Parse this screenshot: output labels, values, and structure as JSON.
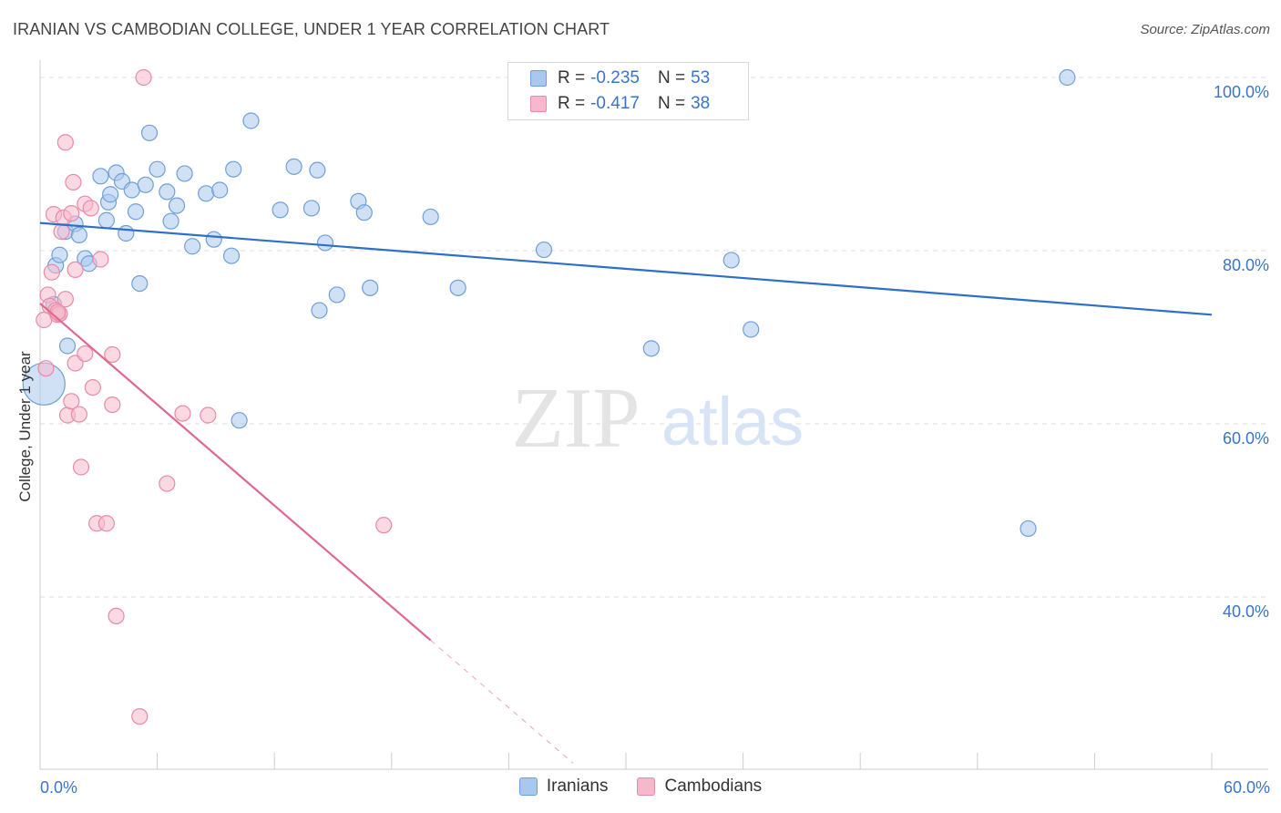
{
  "title": "IRANIAN VS CAMBODIAN COLLEGE, UNDER 1 YEAR CORRELATION CHART",
  "source": "Source: ZipAtlas.com",
  "watermark": {
    "zip": "ZIP",
    "atlas": "atlas"
  },
  "legend": {
    "iranians": {
      "r_label": "R =",
      "r_value": "-0.235",
      "n_label": "N =",
      "n_value": "53"
    },
    "cambodians": {
      "r_label": "R =",
      "r_value": "-0.417",
      "n_label": "N =",
      "n_value": "38"
    }
  },
  "colors": {
    "blue_fill": "#a9c8ef",
    "blue_stroke": "#6f9fd8",
    "blue_line": "#2e6fc9",
    "pink_fill": "#f6b9cc",
    "pink_stroke": "#e88aa8",
    "pink_line": "#e0698f",
    "axis_text": "#3a74c9",
    "grid": "#dddddd"
  },
  "chart_data": {
    "type": "scatter",
    "title": "IRANIAN VS CAMBODIAN COLLEGE, UNDER 1 YEAR CORRELATION CHART",
    "xlabel": "",
    "ylabel": "College, Under 1 year",
    "xlim": [
      0,
      60
    ],
    "ylim": [
      20,
      102
    ],
    "x_tick_labels": [
      {
        "value": 0,
        "label": "0.0%"
      },
      {
        "value": 60,
        "label": "60.0%"
      }
    ],
    "y_tick_labels": [
      {
        "value": 100,
        "label": "100.0%"
      },
      {
        "value": 80,
        "label": "80.0%"
      },
      {
        "value": 60,
        "label": "60.0%"
      },
      {
        "value": 40,
        "label": "40.0%"
      }
    ],
    "series": [
      {
        "name": "Iranians",
        "color": "#a9c8ef",
        "trend": {
          "x0": 0,
          "y0": 83.2,
          "x1": 60,
          "y1": 72.6,
          "dashed_to": 60
        },
        "points": [
          [
            0.7,
            73.8
          ],
          [
            0.8,
            78.3
          ],
          [
            1.0,
            79.5
          ],
          [
            1.3,
            82.2
          ],
          [
            1.4,
            69.0
          ],
          [
            1.8,
            83.1
          ],
          [
            2.0,
            81.8
          ],
          [
            2.3,
            79.1
          ],
          [
            2.5,
            78.5
          ],
          [
            3.1,
            88.6
          ],
          [
            3.4,
            83.5
          ],
          [
            3.5,
            85.6
          ],
          [
            3.6,
            86.5
          ],
          [
            3.9,
            89.0
          ],
          [
            4.2,
            88.0
          ],
          [
            4.4,
            82.0
          ],
          [
            4.7,
            87.0
          ],
          [
            4.9,
            84.5
          ],
          [
            5.1,
            76.2
          ],
          [
            5.4,
            87.6
          ],
          [
            5.6,
            93.6
          ],
          [
            6.0,
            89.4
          ],
          [
            6.5,
            86.8
          ],
          [
            6.7,
            83.4
          ],
          [
            7.0,
            85.2
          ],
          [
            7.4,
            88.9
          ],
          [
            7.8,
            80.5
          ],
          [
            8.5,
            86.6
          ],
          [
            8.9,
            81.3
          ],
          [
            9.2,
            87.0
          ],
          [
            9.8,
            79.4
          ],
          [
            9.9,
            89.4
          ],
          [
            10.2,
            60.4
          ],
          [
            10.8,
            95.0
          ],
          [
            12.3,
            84.7
          ],
          [
            13.0,
            89.7
          ],
          [
            13.9,
            84.9
          ],
          [
            14.2,
            89.3
          ],
          [
            14.3,
            73.1
          ],
          [
            14.6,
            80.9
          ],
          [
            15.2,
            74.9
          ],
          [
            16.3,
            85.7
          ],
          [
            16.6,
            84.4
          ],
          [
            16.9,
            75.7
          ],
          [
            20.0,
            83.9
          ],
          [
            21.4,
            75.7
          ],
          [
            25.8,
            80.1
          ],
          [
            31.3,
            68.7
          ],
          [
            35.4,
            78.9
          ],
          [
            36.4,
            70.9
          ],
          [
            50.6,
            47.9
          ],
          [
            52.6,
            100.0
          ],
          [
            0.2,
            64.6
          ]
        ]
      },
      {
        "name": "Cambodians",
        "color": "#f6b9cc",
        "trend": {
          "x0": 0,
          "y0": 73.9,
          "x1": 20,
          "y1": 35.0,
          "dashed_to": 27.3
        },
        "points": [
          [
            0.2,
            72.0
          ],
          [
            0.3,
            66.4
          ],
          [
            0.4,
            74.9
          ],
          [
            0.5,
            73.6
          ],
          [
            0.6,
            77.5
          ],
          [
            0.7,
            84.2
          ],
          [
            0.8,
            73.1
          ],
          [
            0.9,
            72.6
          ],
          [
            1.0,
            72.7
          ],
          [
            1.1,
            82.2
          ],
          [
            1.2,
            83.8
          ],
          [
            1.3,
            74.4
          ],
          [
            1.3,
            92.5
          ],
          [
            1.4,
            61.0
          ],
          [
            1.6,
            84.3
          ],
          [
            1.6,
            62.6
          ],
          [
            1.7,
            87.9
          ],
          [
            1.8,
            77.8
          ],
          [
            1.8,
            67.0
          ],
          [
            2.0,
            61.1
          ],
          [
            2.1,
            55.0
          ],
          [
            2.3,
            85.4
          ],
          [
            2.3,
            68.1
          ],
          [
            2.6,
            84.9
          ],
          [
            2.7,
            64.2
          ],
          [
            2.9,
            48.5
          ],
          [
            3.1,
            79.0
          ],
          [
            3.4,
            48.5
          ],
          [
            3.7,
            62.2
          ],
          [
            3.7,
            68.0
          ],
          [
            3.9,
            37.8
          ],
          [
            5.1,
            26.2
          ],
          [
            5.3,
            100.0
          ],
          [
            6.5,
            53.1
          ],
          [
            7.3,
            61.2
          ],
          [
            8.6,
            61.0
          ],
          [
            17.6,
            48.3
          ],
          [
            0.9,
            72.9
          ]
        ]
      }
    ]
  }
}
